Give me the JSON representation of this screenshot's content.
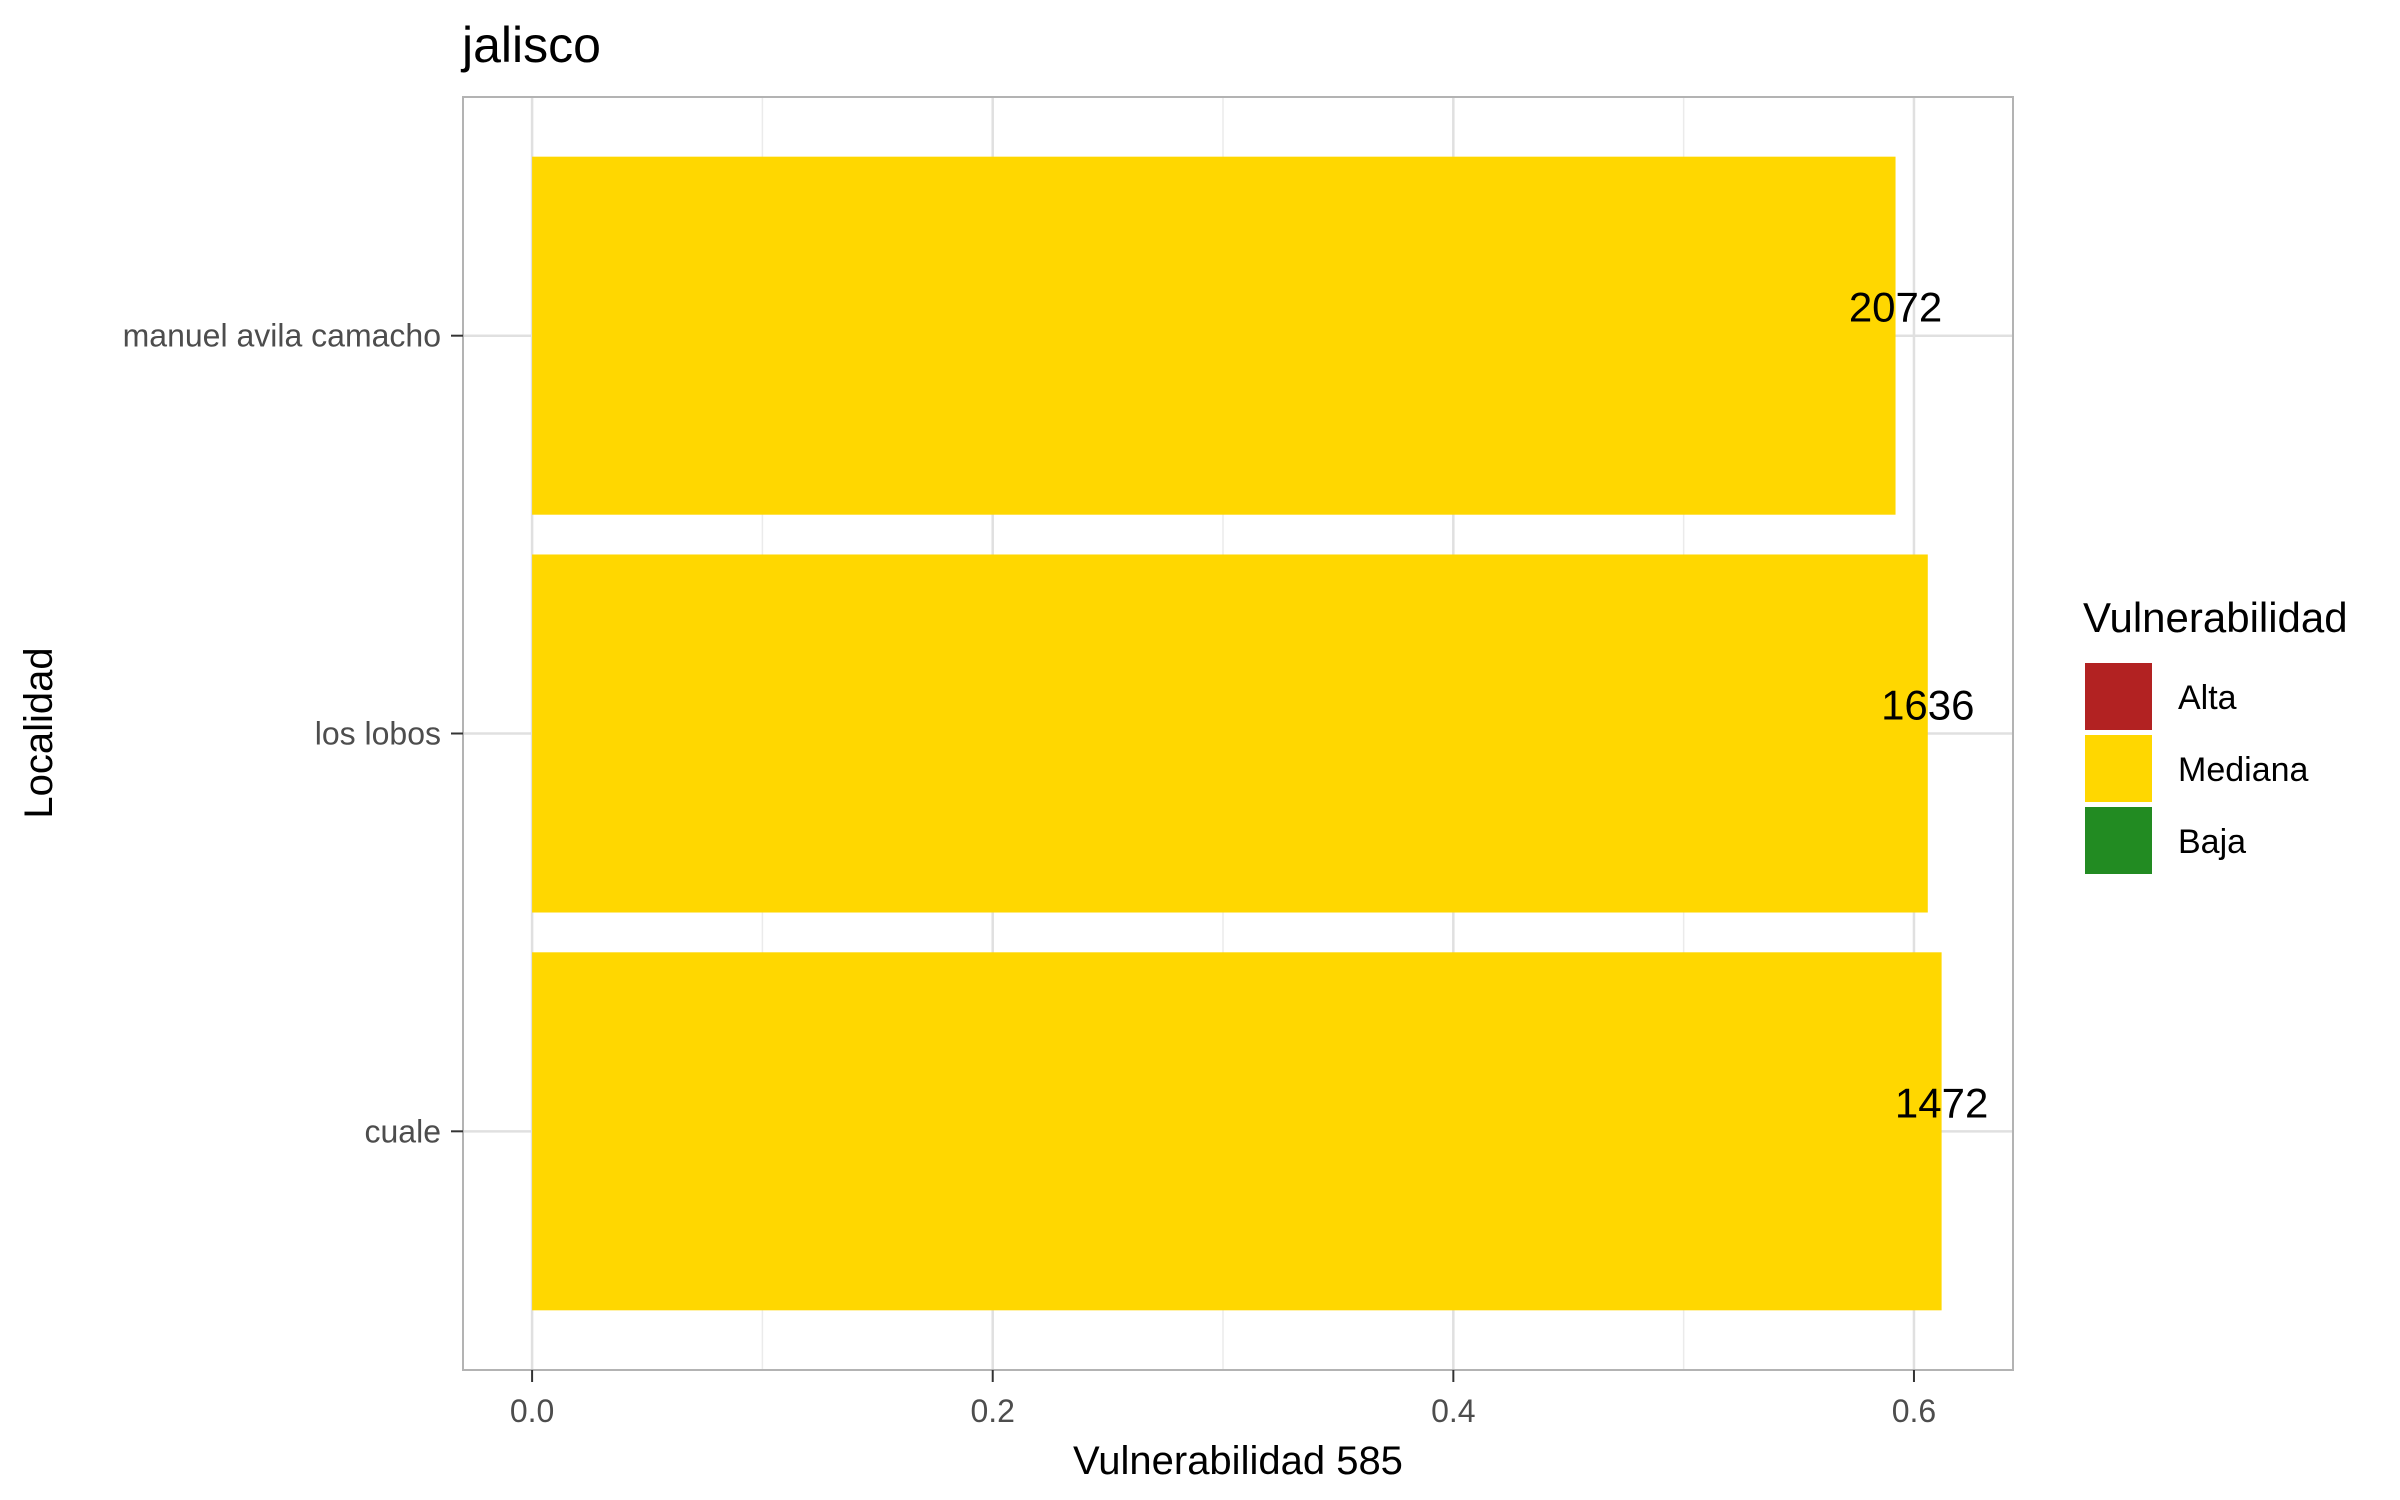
{
  "chart_data": {
    "type": "bar",
    "orientation": "horizontal",
    "title": "jalisco",
    "xlabel": "Vulnerabilidad 585",
    "ylabel": "Localidad",
    "categories": [
      "cuale",
      "los lobos",
      "manuel avila camacho"
    ],
    "values": [
      0.612,
      0.606,
      0.592
    ],
    "labels": [
      "1472",
      "1636",
      "2072"
    ],
    "bar_categories": [
      "Mediana",
      "Mediana",
      "Mediana"
    ],
    "xlim": [
      -0.03,
      0.643
    ],
    "xticks": [
      0.0,
      0.2,
      0.4,
      0.6
    ],
    "xtick_labels": [
      "0.0",
      "0.2",
      "0.4",
      "0.6"
    ],
    "grid": true,
    "legend": {
      "title": "Vulnerabilidad",
      "position": "right",
      "entries": [
        {
          "label": "Alta",
          "color": "#b22222"
        },
        {
          "label": "Mediana",
          "color": "#ffd700"
        },
        {
          "label": "Baja",
          "color": "#228b22"
        }
      ]
    },
    "colors": {
      "Alta": "#b22222",
      "Mediana": "#ffd700",
      "Baja": "#228b22",
      "grid": "#ebebeb",
      "panel_border": "#b3b3b3"
    }
  }
}
